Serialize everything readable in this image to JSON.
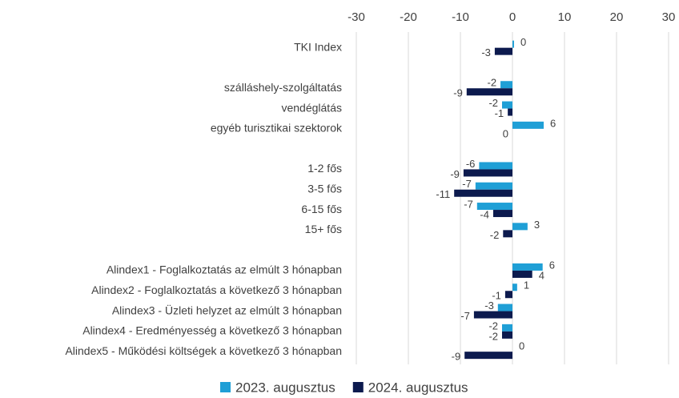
{
  "chart_data": {
    "type": "barh",
    "categories": [
      "TKI Index",
      null,
      "szálláshely-szolgáltatás",
      "vendéglátás",
      "egyéb turisztikai szektorok",
      null,
      "1-2 fős",
      "3-5 fős",
      "6-15 fős",
      "15+ fős",
      null,
      "Alindex1 - Foglalkoztatás az elmúlt 3 hónapban",
      "Alindex2 -  Foglalkoztatás a következő 3 hónapban",
      "Alindex3 - Üzleti helyzet  az elmúlt 3 hónapban",
      "Alindex4 - Eredményesség a következő 3 hónapban",
      "Alindex5 - Működési költségek a következő 3 hónapban"
    ],
    "series": [
      {
        "name": "2023. augusztus",
        "color": "#1f9fd6",
        "values": [
          0.3,
          null,
          -2.3,
          -2,
          6,
          null,
          -6.4,
          -7.1,
          -6.8,
          2.9,
          null,
          5.8,
          0.9,
          -2.8,
          -2,
          0
        ],
        "value_labels": [
          "0",
          null,
          "-2",
          "-2",
          "6",
          null,
          "-6",
          "-7",
          "-7",
          "3",
          null,
          "6",
          "1",
          "-3",
          "-2",
          "0"
        ]
      },
      {
        "name": "2024. augusztus",
        "color": "#0c1a4e",
        "values": [
          -3.4,
          null,
          -8.8,
          -0.9,
          0,
          null,
          -9.4,
          -11.2,
          -3.7,
          -1.8,
          null,
          3.8,
          -1.4,
          -7.4,
          -2,
          -9.2
        ],
        "value_labels": [
          "-3",
          null,
          "-9",
          "-1",
          "0",
          null,
          "-9",
          "-11",
          "-4",
          "-2",
          null,
          "4",
          "-1",
          "-7",
          "-2",
          "-9"
        ]
      }
    ],
    "xlim": [
      -30,
      30
    ],
    "xticks": [
      -30,
      -20,
      -10,
      0,
      10,
      20,
      30
    ],
    "grid": true,
    "legend": "bottom"
  }
}
